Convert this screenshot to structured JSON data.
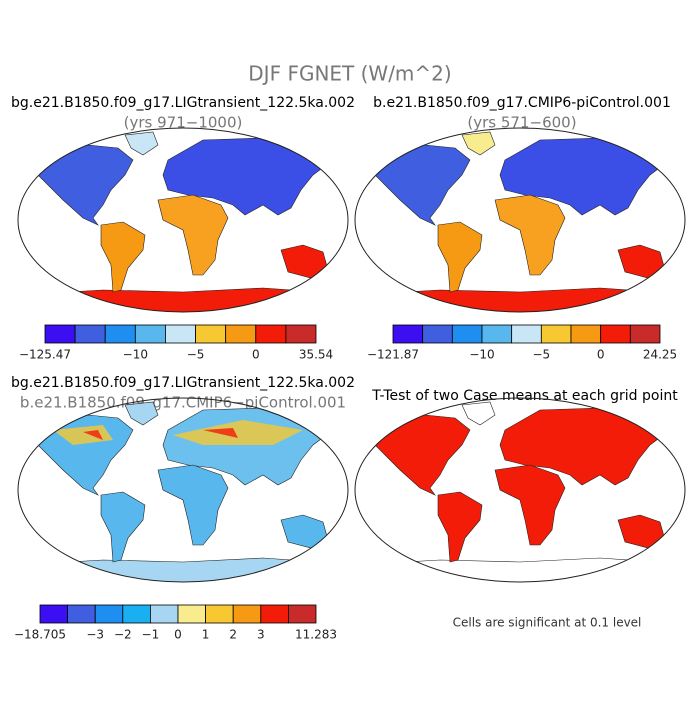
{
  "title": "DJF FGNET (W/m^2)",
  "panels": [
    {
      "title": "bg.e21.B1850.f09_g17.LIGtransient_122.5ka.002",
      "subtitle": "(yrs 971−1000)",
      "colorbar": {
        "colors": [
          "#3b0ff2",
          "#3f5ee0",
          "#1e8ef0",
          "#58b8ee",
          "#c9e6f6",
          "#f8c832",
          "#f69a14",
          "#f21c08",
          "#c92a2a"
        ],
        "labels": [
          "−125.47",
          null,
          null,
          "−10",
          null,
          "−5",
          null,
          "0",
          null,
          "35.54"
        ]
      }
    },
    {
      "title": "b.e21.B1850.f09_g17.CMIP6-piControl.001",
      "subtitle": "(yrs 571−600)",
      "colorbar": {
        "colors": [
          "#3b0ff2",
          "#3f5ee0",
          "#1e8ef0",
          "#58b8ee",
          "#c9e6f6",
          "#f8c832",
          "#f69a14",
          "#f21c08",
          "#c92a2a"
        ],
        "labels": [
          "−121.87",
          null,
          null,
          "−10",
          null,
          "−5",
          null,
          "0",
          null,
          "24.25"
        ]
      }
    },
    {
      "title": "bg.e21.B1850.f09_g17.LIGtransient_122.5ka.002",
      "subtitle": "b.e21.B1850.f09_g17.CMIP6−piControl.001",
      "colorbar": {
        "colors": [
          "#3b0ff2",
          "#3f5ee0",
          "#1e8ef0",
          "#18b0f0",
          "#a6d6f2",
          "#f8ec8e",
          "#f8c832",
          "#f69a14",
          "#f21c08",
          "#c92a2a"
        ],
        "labels": [
          "−18.705",
          null,
          "−3",
          "−2",
          "−1",
          "0",
          "1",
          "2",
          "3",
          null,
          "11.283"
        ]
      }
    },
    {
      "title": "T-Test of two Case means at each grid point",
      "note": "Cells are significant at 0.1 level"
    }
  ]
}
